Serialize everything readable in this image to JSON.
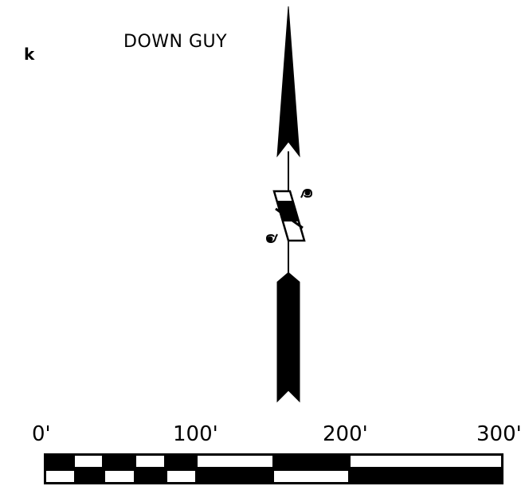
{
  "title": "DOWN GUY",
  "corner_mark": "k",
  "scale_bar": {
    "tick_labels": [
      "0'",
      "100'",
      "200'",
      "300'"
    ]
  },
  "colors": {
    "ink": "#000000",
    "paper": "#ffffff"
  },
  "icons": {
    "arrow_head": "arrowhead-icon",
    "arrow_tail": "fletching-icon",
    "break_symbol": "line-break-icon"
  }
}
